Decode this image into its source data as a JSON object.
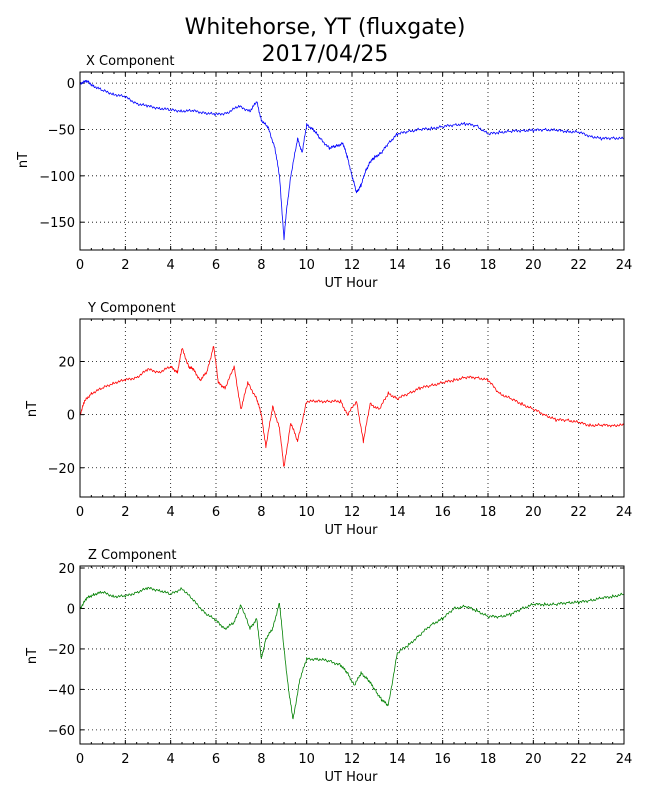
{
  "figure": {
    "title_line1": "Whitehorse, YT (fluxgate)",
    "title_line2": "2017/04/25"
  },
  "chart_data": [
    {
      "type": "line",
      "title": "X Component",
      "xlabel": "UT Hour",
      "ylabel": "nT",
      "xlim": [
        0,
        24
      ],
      "ylim": [
        -180,
        12
      ],
      "xticks": [
        0,
        2,
        4,
        6,
        8,
        10,
        12,
        14,
        16,
        18,
        20,
        22,
        24
      ],
      "yticks": [
        -150,
        -100,
        -50,
        0
      ],
      "grid": true,
      "color": "#0000ff",
      "x": [
        0,
        0.3,
        0.6,
        1.0,
        1.5,
        2.0,
        2.5,
        3.0,
        3.5,
        4.0,
        4.5,
        5.0,
        5.5,
        6.0,
        6.5,
        7.0,
        7.5,
        7.8,
        8.0,
        8.3,
        8.6,
        8.8,
        9.0,
        9.1,
        9.3,
        9.6,
        9.8,
        10.0,
        10.3,
        10.6,
        11.0,
        11.3,
        11.6,
        11.8,
        12.0,
        12.2,
        12.4,
        12.6,
        12.8,
        13.0,
        13.3,
        13.6,
        14.0,
        14.5,
        15.0,
        15.5,
        16.0,
        16.5,
        17.0,
        17.5,
        18.0,
        18.5,
        19.0,
        19.5,
        20.0,
        20.5,
        21.0,
        21.5,
        22.0,
        22.5,
        23.0,
        23.5,
        24.0
      ],
      "y": [
        0,
        2,
        -3,
        -8,
        -12,
        -15,
        -22,
        -25,
        -27,
        -29,
        -30,
        -30,
        -32,
        -34,
        -32,
        -25,
        -30,
        -20,
        -40,
        -48,
        -70,
        -100,
        -168,
        -140,
        -100,
        -60,
        -75,
        -45,
        -50,
        -60,
        -70,
        -68,
        -65,
        -80,
        -100,
        -118,
        -110,
        -95,
        -85,
        -80,
        -75,
        -65,
        -55,
        -52,
        -50,
        -49,
        -47,
        -45,
        -44,
        -46,
        -55,
        -53,
        -52,
        -51,
        -51,
        -50,
        -51,
        -52,
        -53,
        -57,
        -60,
        -59,
        -60
      ]
    },
    {
      "type": "line",
      "title": "Y Component",
      "xlabel": "UT Hour",
      "ylabel": "nT",
      "xlim": [
        0,
        24
      ],
      "ylim": [
        -31,
        36
      ],
      "xticks": [
        0,
        2,
        4,
        6,
        8,
        10,
        12,
        14,
        16,
        18,
        20,
        22,
        24
      ],
      "yticks": [
        -20,
        0,
        20
      ],
      "grid": true,
      "color": "#ff0000",
      "x": [
        0,
        0.2,
        0.5,
        1.0,
        1.5,
        2.0,
        2.5,
        3.0,
        3.5,
        4.0,
        4.3,
        4.5,
        4.8,
        5.0,
        5.3,
        5.6,
        5.9,
        6.1,
        6.4,
        6.8,
        7.1,
        7.4,
        7.8,
        8.0,
        8.2,
        8.5,
        8.8,
        9.0,
        9.3,
        9.6,
        10.0,
        10.5,
        11.0,
        11.5,
        11.8,
        12.2,
        12.5,
        12.8,
        13.2,
        13.6,
        14.0,
        14.5,
        15.0,
        15.5,
        16.0,
        16.5,
        17.0,
        17.5,
        18.0,
        18.5,
        19.0,
        19.5,
        20.0,
        20.5,
        21.0,
        21.5,
        22.0,
        22.5,
        23.0,
        23.5,
        24.0
      ],
      "y": [
        0,
        5,
        8,
        10,
        12,
        13,
        14,
        17,
        16,
        18,
        16,
        25,
        18,
        17,
        13,
        16,
        26,
        12,
        10,
        18,
        2,
        12,
        6,
        0,
        -12,
        3,
        -5,
        -20,
        -3,
        -10,
        5,
        5,
        5,
        5,
        0,
        5,
        -10,
        4,
        2,
        8,
        6,
        8,
        10,
        11,
        12,
        13,
        14,
        14,
        13,
        8,
        6,
        4,
        2,
        0,
        -2,
        -2,
        -3,
        -4,
        -4,
        -4,
        -4
      ]
    },
    {
      "type": "line",
      "title": "Z Component",
      "xlabel": "UT Hour",
      "ylabel": "nT",
      "xlim": [
        0,
        24
      ],
      "ylim": [
        -67,
        21
      ],
      "xticks": [
        0,
        2,
        4,
        6,
        8,
        10,
        12,
        14,
        16,
        18,
        20,
        22,
        24
      ],
      "yticks": [
        -60,
        -40,
        -20,
        0,
        20
      ],
      "grid": true,
      "color": "#008000",
      "x": [
        0,
        0.3,
        0.6,
        1.0,
        1.5,
        2.0,
        2.5,
        3.0,
        3.5,
        4.0,
        4.5,
        5.0,
        5.5,
        6.0,
        6.4,
        6.8,
        7.1,
        7.5,
        7.8,
        8.0,
        8.2,
        8.5,
        8.8,
        9.0,
        9.2,
        9.4,
        9.7,
        10.0,
        10.5,
        11.0,
        11.5,
        11.8,
        12.1,
        12.4,
        12.7,
        13.0,
        13.3,
        13.6,
        14.0,
        14.5,
        15.0,
        15.5,
        16.0,
        16.5,
        17.0,
        17.5,
        18.0,
        18.5,
        19.0,
        19.5,
        20.0,
        20.5,
        21.0,
        21.5,
        22.0,
        22.5,
        23.0,
        23.5,
        24.0
      ],
      "y": [
        0,
        5,
        7,
        8,
        6,
        6,
        8,
        10,
        9,
        7,
        10,
        4,
        -2,
        -6,
        -10,
        -7,
        2,
        -10,
        -5,
        -25,
        -15,
        -10,
        3,
        -20,
        -40,
        -55,
        -35,
        -25,
        -25,
        -26,
        -28,
        -32,
        -38,
        -32,
        -35,
        -40,
        -45,
        -48,
        -22,
        -18,
        -13,
        -8,
        -5,
        0,
        1,
        -1,
        -4,
        -4,
        -3,
        0,
        2,
        2,
        2,
        3,
        3,
        4,
        5,
        6,
        7
      ]
    }
  ]
}
